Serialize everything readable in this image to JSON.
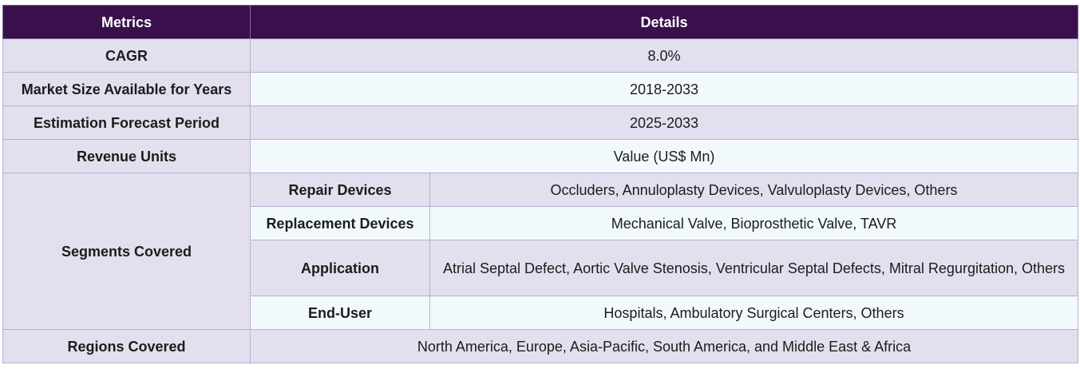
{
  "header": {
    "col1": "Metrics",
    "col2": "Details"
  },
  "rows": [
    {
      "label": "CAGR",
      "value": "8.0%"
    },
    {
      "label": "Market Size Available for Years",
      "value": "2018-2033"
    },
    {
      "label": "Estimation Forecast Period",
      "value": "2025-2033"
    },
    {
      "label": "Revenue Units",
      "value": "Value (US$ Mn)"
    }
  ],
  "segments": {
    "label": "Segments Covered",
    "items": [
      {
        "name": "Repair Devices",
        "value": "Occluders, Annuloplasty Devices, Valvuloplasty Devices, Others"
      },
      {
        "name": "Replacement Devices",
        "value": "Mechanical Valve, Bioprosthetic Valve, TAVR"
      },
      {
        "name": "Application",
        "value": "Atrial Septal Defect, Aortic Valve Stenosis, Ventricular Septal Defects, Mitral Regurgitation, Others"
      },
      {
        "name": "End-User",
        "value": "Hospitals, Ambulatory Surgical Centers, Others"
      }
    ]
  },
  "regions": {
    "label": "Regions Covered",
    "value": "North America, Europe, Asia-Pacific, South America, and Middle East & Africa"
  }
}
